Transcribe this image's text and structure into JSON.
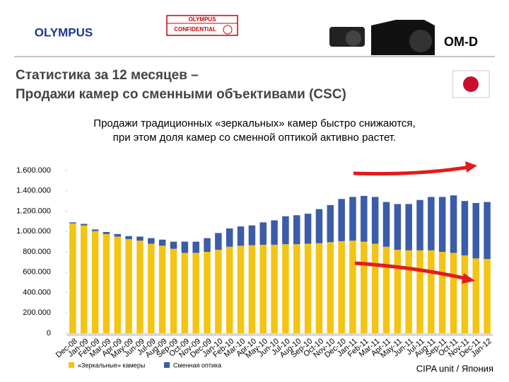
{
  "header": {
    "logo": "OLYMPUS",
    "stamp_top": "OLYMPUS",
    "stamp_bottom": "CONFIDENTIAL",
    "brand": "OM-D"
  },
  "chart_data": {
    "type": "stacked_bar",
    "title": [
      "Статистика за 12 месяцев –",
      "Продажи камер со сменными объективами (CSC)"
    ],
    "subtitle": [
      "Продажи традиционных «зеркальных» камер быстро снижаются,",
      "при этом доля камер со сменной оптикой активно растет."
    ],
    "source": "CIPA unit / Япония",
    "categories": [
      "Dec-08",
      "Jan-09",
      "Feb-09",
      "Mar-09",
      "Apr-09",
      "May-09",
      "Jun-09",
      "Jul-09",
      "Aug-09",
      "Sep-09",
      "Oct-09",
      "Nov-09",
      "Dec-09",
      "Jan-10",
      "Feb-10",
      "Mar-10",
      "Apr-10",
      "May-10",
      "Jun-10",
      "Jul-10",
      "Aug-10",
      "Sep-10",
      "Oct-10",
      "Nov-10",
      "Dec-10",
      "Jan-11",
      "Feb-11",
      "Mar-11",
      "Apr-11",
      "May-11",
      "Jun-11",
      "Jul-11",
      "Aug-11",
      "Sep-11",
      "Oct-11",
      "Nov-11",
      "Dec-11",
      "Jan-12"
    ],
    "series": [
      {
        "name": "«Зеркальные» камеры",
        "color": "#f4c414",
        "values": [
          1080000,
          1060000,
          1005000,
          975000,
          950000,
          925000,
          910000,
          880000,
          860000,
          830000,
          790000,
          790000,
          800000,
          820000,
          850000,
          860000,
          865000,
          870000,
          870000,
          875000,
          875000,
          880000,
          885000,
          895000,
          905000,
          910000,
          900000,
          880000,
          850000,
          820000,
          815000,
          815000,
          815000,
          800000,
          790000,
          765000,
          735000,
          730000
        ]
      },
      {
        "name": "Сменная оптика",
        "color": "#3b5ca8",
        "values": [
          10000,
          15000,
          15000,
          20000,
          25000,
          30000,
          40000,
          55000,
          60000,
          70000,
          110000,
          110000,
          135000,
          165000,
          180000,
          190000,
          195000,
          220000,
          240000,
          275000,
          285000,
          295000,
          335000,
          365000,
          415000,
          430000,
          450000,
          460000,
          440000,
          450000,
          455000,
          495000,
          525000,
          540000,
          565000,
          535000,
          545000,
          560000
        ]
      }
    ],
    "ylim": [
      0,
      1600000
    ],
    "yticks": [
      0,
      {
        "value": 200000,
        "label": "200.000"
      },
      {
        "value": 400000,
        "label": "400.000"
      },
      {
        "value": 600000,
        "label": "600.000"
      },
      {
        "value": 800000,
        "label": "800.000"
      },
      {
        "value": 1000000,
        "label": "1.000.000"
      },
      {
        "value": 1200000,
        "label": "1.200.000"
      },
      {
        "value": 1400000,
        "label": "1.400.000"
      },
      {
        "value": 1600000,
        "label": "1.600.000"
      }
    ],
    "grid": false
  }
}
